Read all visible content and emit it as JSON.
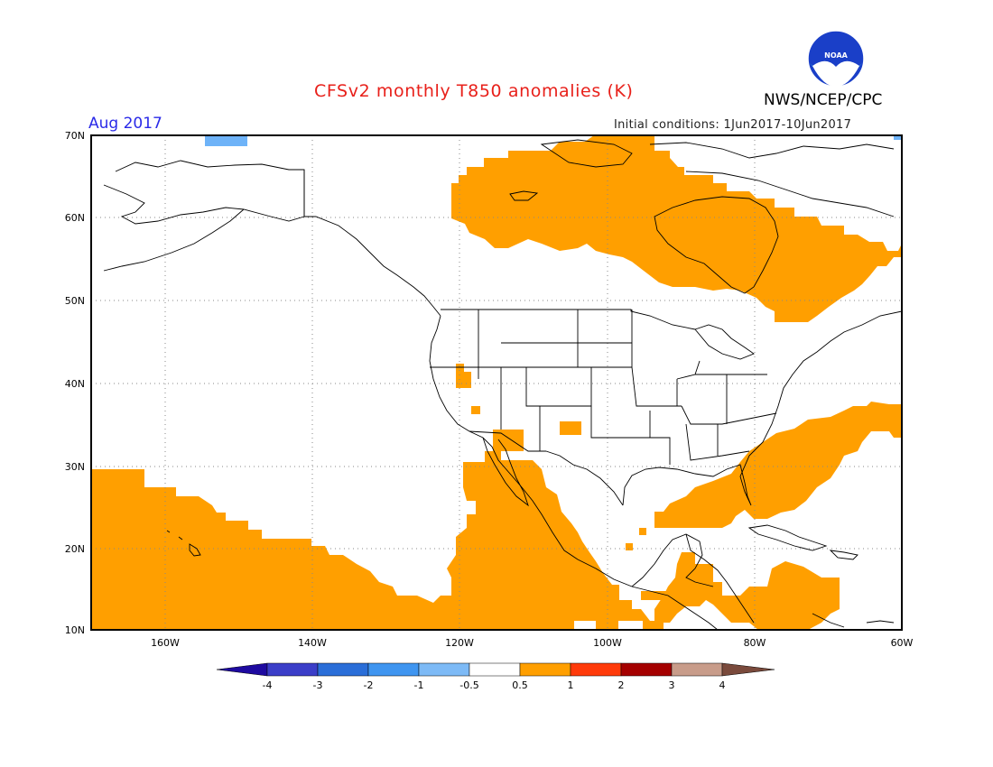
{
  "header": {
    "title": "CFSv2 monthly T850 anomalies (K)",
    "month": "Aug 2017",
    "agency": "NWS/NCEP/CPC",
    "initial_conditions": "Initial conditions: 1Jun2017-10Jun2017",
    "logo_text": "NOAA"
  },
  "map": {
    "lon_range": [
      -170,
      -60
    ],
    "lat_range": [
      10,
      70
    ],
    "lat_labels": [
      "70N",
      "60N",
      "50N",
      "40N",
      "30N",
      "20N",
      "10N"
    ],
    "lon_labels": [
      "160W",
      "140W",
      "120W",
      "100W",
      "80W",
      "60W"
    ]
  },
  "colorbar": {
    "labels": [
      "-4",
      "-3",
      "-2",
      "-1",
      "-0.5",
      "0.5",
      "1",
      "2",
      "3",
      "4"
    ],
    "colors": [
      "#1e0aa0",
      "#3b3ec8",
      "#2a6ed8",
      "#3f95f0",
      "#7dbaf6",
      "#ffffff",
      "#ff9f00",
      "#ff3a0a",
      "#a50000",
      "#c89c8a",
      "#7a4a3c"
    ]
  },
  "colors": {
    "warm_anomaly": "#ff9f00",
    "cool_anomaly": "#6eb3f8",
    "title": "#e8201a",
    "month": "#2a2ae8"
  }
}
